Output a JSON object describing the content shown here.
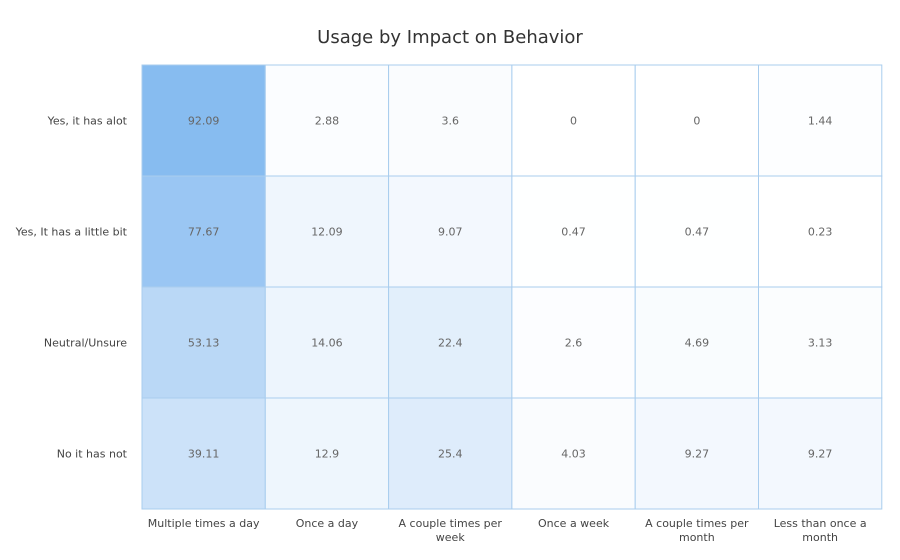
{
  "chart_data": {
    "type": "heatmap",
    "title": "Usage by Impact on Behavior",
    "rows": [
      "Yes, it has alot",
      "Yes, It has a little bit",
      "Neutral/Unsure",
      "No it has not"
    ],
    "columns": [
      [
        "Multiple times a day"
      ],
      [
        "Once a day"
      ],
      [
        "A couple times per",
        "week"
      ],
      [
        "Once a week"
      ],
      [
        "A couple times per",
        "month"
      ],
      [
        "Less than once a",
        "month"
      ]
    ],
    "values": [
      [
        92.09,
        2.88,
        3.6,
        0,
        0,
        1.44
      ],
      [
        77.67,
        12.09,
        9.07,
        0.47,
        0.47,
        0.23
      ],
      [
        53.13,
        14.06,
        22.4,
        2.6,
        4.69,
        3.13
      ],
      [
        39.11,
        12.9,
        25.4,
        4.03,
        9.27,
        9.27
      ]
    ],
    "value_range": [
      0,
      100
    ],
    "colors": {
      "low": "#ffffff",
      "high": "#7db6ef",
      "grid": "#a9cdee"
    },
    "legend": "none",
    "grid": true
  }
}
